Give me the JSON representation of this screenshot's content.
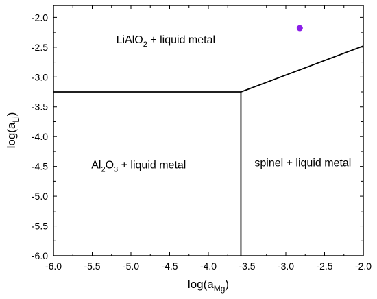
{
  "chart_data": {
    "type": "phase-diagram",
    "xlabel": {
      "main": "log(a",
      "sub": "Mg",
      "close": ")"
    },
    "ylabel": {
      "main": "log(a",
      "sub": "Li",
      "close": ")"
    },
    "xlim": [
      -6.0,
      -2.0
    ],
    "ylim": [
      -6.0,
      -1.8
    ],
    "xticks": [
      -6.0,
      -5.5,
      -5.0,
      -4.5,
      -4.0,
      -3.5,
      -3.0,
      -2.5,
      -2.0
    ],
    "yticks": [
      -2.0,
      -2.5,
      -3.0,
      -3.5,
      -4.0,
      -4.5,
      -5.0,
      -5.5,
      -6.0
    ],
    "xtick_labels": [
      "-6.0",
      "-5.5",
      "-5.0",
      "-4.5",
      "-4.0",
      "-3.5",
      "-3.0",
      "-2.5",
      "-2.0"
    ],
    "ytick_labels": [
      "-2.0",
      "-2.5",
      "-3.0",
      "-3.5",
      "-4.0",
      "-4.5",
      "-5.0",
      "-5.5",
      "-6.0"
    ],
    "boundaries": [
      {
        "name": "LiAlO2/Al2O3",
        "points": [
          [
            -6.0,
            -3.25
          ],
          [
            -3.58,
            -3.25
          ]
        ]
      },
      {
        "name": "LiAlO2/spinel",
        "points": [
          [
            -3.58,
            -3.25
          ],
          [
            -2.0,
            -2.48
          ]
        ]
      },
      {
        "name": "Al2O3/spinel",
        "points": [
          [
            -3.58,
            -3.25
          ],
          [
            -3.58,
            -6.0
          ]
        ]
      }
    ],
    "regions": [
      {
        "parts": [
          [
            "LiAlO",
            ""
          ],
          [
            "2",
            "sub"
          ],
          [
            " + liquid metal",
            ""
          ]
        ],
        "x": -4.55,
        "y": -2.43
      },
      {
        "parts": [
          [
            "Al",
            ""
          ],
          [
            "2",
            "sub"
          ],
          [
            "O",
            ""
          ],
          [
            "3",
            "sub"
          ],
          [
            " + liquid metal",
            ""
          ]
        ],
        "x": -4.9,
        "y": -4.53
      },
      {
        "parts": [
          [
            "spinel + liquid metal",
            ""
          ]
        ],
        "x": -2.78,
        "y": -4.5
      }
    ],
    "points": [
      {
        "x": -2.82,
        "y": -2.18,
        "color": "#8b1ee8"
      }
    ],
    "grid": false,
    "legend": "none"
  }
}
